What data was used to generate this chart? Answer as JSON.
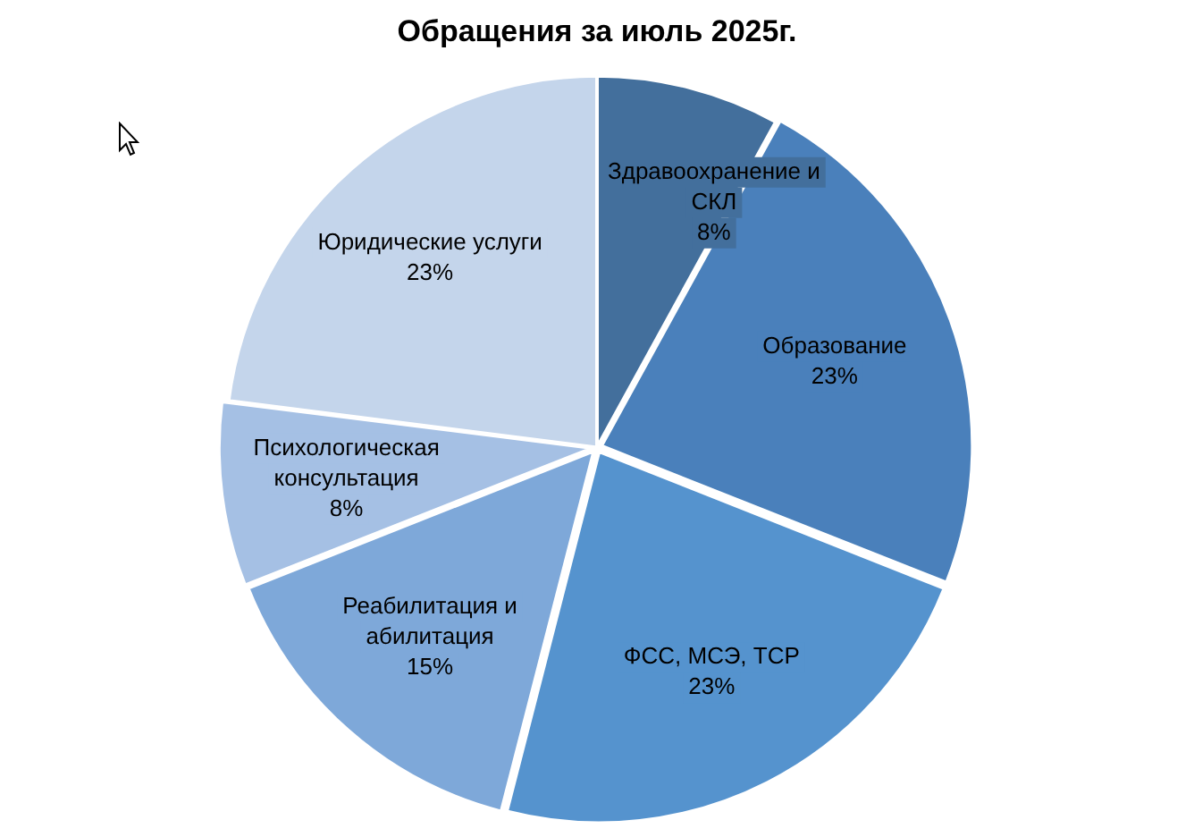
{
  "chart_data": {
    "type": "pie",
    "title": "Обращения за июль 2025г.",
    "categories": [
      "Здравоохранение и СКЛ",
      "Образование",
      "ФСС, МСЭ, ТСР",
      "Реабилитация и абилитация",
      "Психологическая консультация",
      "Юридические услуги"
    ],
    "values": [
      8,
      23,
      23,
      15,
      8,
      23
    ],
    "value_labels": [
      "8%",
      "23%",
      "23%",
      "15%",
      "8%",
      "23%"
    ],
    "colors": [
      "#436f9c",
      "#4a80bb",
      "#5593ce",
      "#7ea8d9",
      "#a5c0e4",
      "#c4d5eb"
    ],
    "legend": false
  }
}
